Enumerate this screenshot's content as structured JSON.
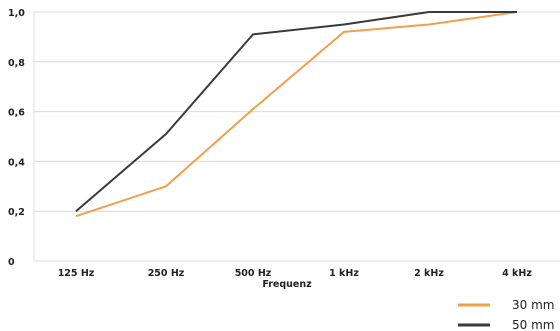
{
  "chart_data": {
    "type": "line",
    "title": "",
    "xlabel": "Frequenz",
    "ylabel": "",
    "categories": [
      "125 Hz",
      "250 Hz",
      "500 Hz",
      "1 kHz",
      "2 kHz",
      "4 kHz"
    ],
    "y_ticks": [
      "0",
      "0,2",
      "0,4",
      "0,6",
      "0,8",
      "1,0"
    ],
    "ylim": [
      0,
      1.0
    ],
    "grid": true,
    "legend_position": "bottom-right",
    "series": [
      {
        "name": "30 mm",
        "color": "#f0a04b",
        "values": [
          0.18,
          0.3,
          0.61,
          0.92,
          0.95,
          1.0
        ]
      },
      {
        "name": "50 mm",
        "color": "#3a3a3a",
        "values": [
          0.2,
          0.51,
          0.91,
          0.95,
          1.0,
          1.0
        ]
      }
    ]
  }
}
